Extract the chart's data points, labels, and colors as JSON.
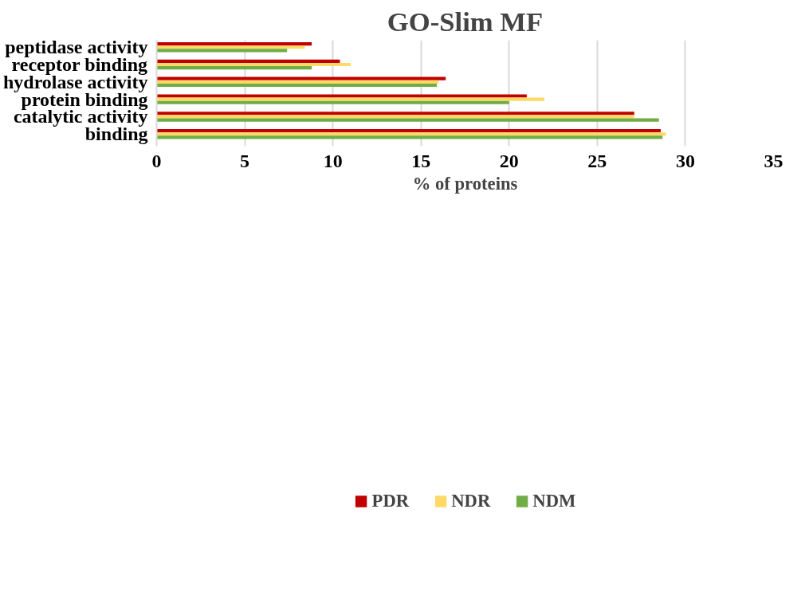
{
  "chart_data": {
    "type": "bar",
    "orientation": "horizontal",
    "title": "GO-Slim MF",
    "xlabel": "% of proteins",
    "categories": [
      "peptidase activity",
      "receptor binding",
      "hydrolase activity",
      "protein binding",
      "catalytic activity",
      "binding"
    ],
    "series": [
      {
        "name": "PDR",
        "color": "#c00000",
        "values": [
          8.8,
          10.4,
          16.4,
          21.0,
          27.1,
          28.6
        ]
      },
      {
        "name": "NDR",
        "color": "#ffd966",
        "values": [
          8.4,
          11.0,
          16.0,
          22.0,
          27.1,
          28.9
        ]
      },
      {
        "name": "NDM",
        "color": "#70ad47",
        "values": [
          7.4,
          8.8,
          15.9,
          20.0,
          28.5,
          28.7
        ]
      }
    ],
    "xlim": [
      0,
      35
    ],
    "xticks": [
      0,
      5,
      10,
      15,
      20,
      25,
      30,
      35
    ],
    "grid": "x",
    "legend": "bottom"
  }
}
